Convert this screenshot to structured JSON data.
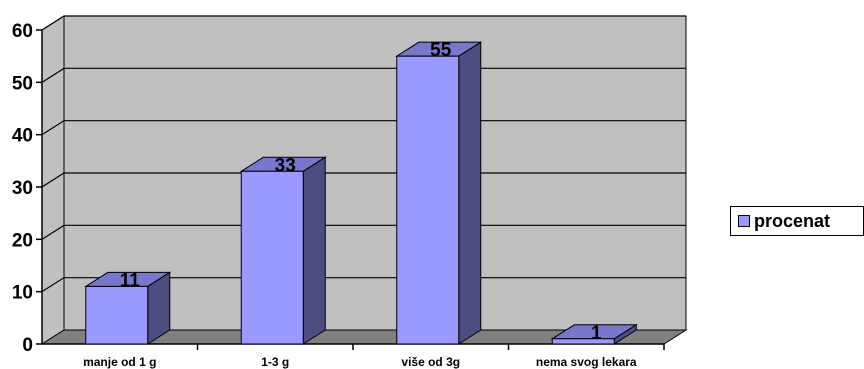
{
  "chart_data": {
    "type": "bar",
    "categories": [
      "manje od 1 g",
      "1-3 g",
      "više od 3g",
      "nema svog lekara"
    ],
    "series": [
      {
        "name": "procenat",
        "values": [
          11,
          33,
          55,
          1
        ]
      }
    ],
    "data_labels": [
      "11",
      "33",
      "55",
      "1"
    ],
    "y_ticks": [
      "0",
      "10",
      "20",
      "30",
      "40",
      "50",
      "60"
    ],
    "ylim": [
      0,
      60
    ],
    "grid": true,
    "style": "3d",
    "legend_position": "right",
    "colors": {
      "bar_front": "#9999ff",
      "bar_side": "#4d4d80",
      "bar_top": "#7777cc",
      "wall": "#c0c0c0",
      "floor": "#808080"
    }
  }
}
